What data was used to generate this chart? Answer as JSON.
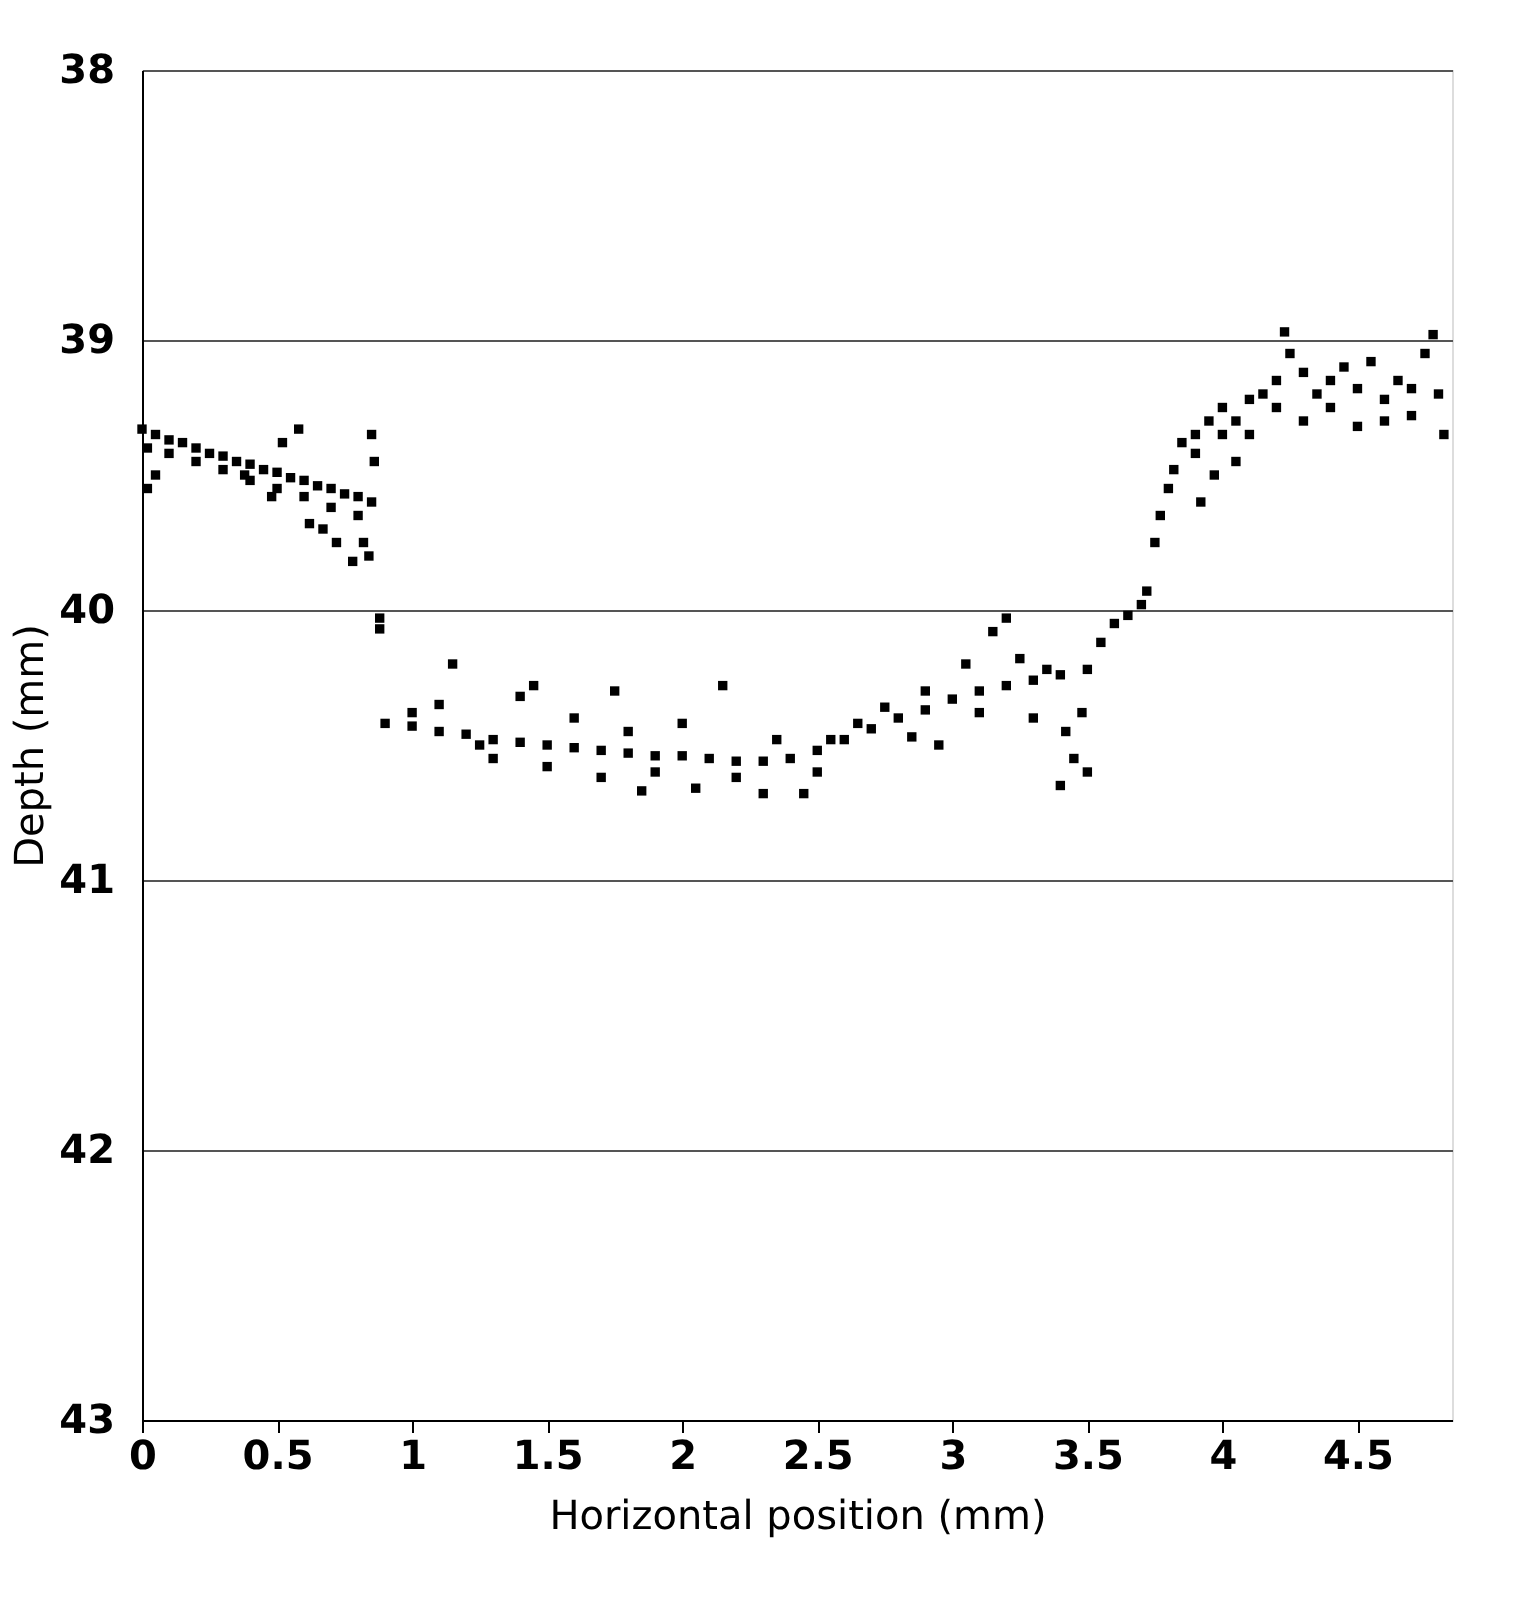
{
  "chart_data": {
    "type": "scatter",
    "xlabel": "Horizontal position (mm)",
    "ylabel": "Depth (mm)",
    "xlim": [
      0,
      4.85
    ],
    "xticks": [
      0,
      0.5,
      1,
      1.5,
      2,
      2.5,
      3,
      3.5,
      4,
      4.5
    ],
    "ylim": [
      43,
      38
    ],
    "yticks": [
      38,
      39,
      40,
      41,
      42,
      43
    ],
    "grid": "y",
    "marker": "square",
    "series": [
      {
        "color": "#000000",
        "x": [
          0,
          0.05,
          0.1,
          0.15,
          0.2,
          0.25,
          0.3,
          0.35,
          0.4,
          0.45,
          0.5,
          0.55,
          0.6,
          0.65,
          0.7,
          0.75,
          0.8,
          0.85,
          0.02,
          0.1,
          0.2,
          0.3,
          0.4,
          0.5,
          0.6,
          0.7,
          0.8,
          0.02,
          0.05,
          0.38,
          0.48,
          0.52,
          0.58,
          0.62,
          0.67,
          0.72,
          0.78,
          0.82,
          0.85,
          0.86,
          0.84,
          0.88,
          0.88,
          0.9,
          1.0,
          1.1,
          1.2,
          1.3,
          1.4,
          1.5,
          1.6,
          1.7,
          1.8,
          1.9,
          2.0,
          2.1,
          2.2,
          2.3,
          2.4,
          2.5,
          2.6,
          2.7,
          2.8,
          2.9,
          3.0,
          3.1,
          3.2,
          3.3,
          3.4,
          3.5,
          1.0,
          1.1,
          1.15,
          1.25,
          1.3,
          1.4,
          1.45,
          1.5,
          1.6,
          1.7,
          1.75,
          1.8,
          1.85,
          1.9,
          2.0,
          2.05,
          2.15,
          2.2,
          2.3,
          2.35,
          2.45,
          2.5,
          2.55,
          2.65,
          2.75,
          2.85,
          2.9,
          2.95,
          3.05,
          3.1,
          3.15,
          3.2,
          3.25,
          3.3,
          3.35,
          3.4,
          3.42,
          3.45,
          3.48,
          3.5,
          3.55,
          3.6,
          3.65,
          3.7,
          3.72,
          3.75,
          3.77,
          3.8,
          3.82,
          3.85,
          3.9,
          3.95,
          4.0,
          4.05,
          4.1,
          4.15,
          4.2,
          4.25,
          4.3,
          4.35,
          4.4,
          4.45,
          4.5,
          4.55,
          4.6,
          4.65,
          4.7,
          4.75,
          4.8,
          4.82,
          3.9,
          4.0,
          4.05,
          4.1,
          4.2,
          4.3,
          4.4,
          4.5,
          4.6,
          4.7,
          4.78,
          4.23,
          3.92,
          3.97
        ],
        "values": [
          39.33,
          39.35,
          39.37,
          39.38,
          39.4,
          39.42,
          39.43,
          39.45,
          39.46,
          39.48,
          39.49,
          39.51,
          39.52,
          39.54,
          39.55,
          39.57,
          39.58,
          39.6,
          39.4,
          39.42,
          39.45,
          39.48,
          39.52,
          39.55,
          39.58,
          39.62,
          39.65,
          39.55,
          39.5,
          39.5,
          39.58,
          39.38,
          39.33,
          39.68,
          39.7,
          39.75,
          39.82,
          39.75,
          39.35,
          39.45,
          39.8,
          40.03,
          40.07,
          40.42,
          40.43,
          40.45,
          40.46,
          40.48,
          40.49,
          40.5,
          40.51,
          40.52,
          40.53,
          40.54,
          40.54,
          40.55,
          40.56,
          40.56,
          40.55,
          40.52,
          40.48,
          40.44,
          40.4,
          40.37,
          40.33,
          40.3,
          40.28,
          40.26,
          40.24,
          40.22,
          40.38,
          40.35,
          40.2,
          40.5,
          40.55,
          40.32,
          40.28,
          40.58,
          40.4,
          40.62,
          40.3,
          40.45,
          40.67,
          40.6,
          40.42,
          40.66,
          40.28,
          40.62,
          40.68,
          40.48,
          40.68,
          40.6,
          40.48,
          40.42,
          40.36,
          40.47,
          40.3,
          40.5,
          40.2,
          40.38,
          40.08,
          40.03,
          40.18,
          40.4,
          40.22,
          40.65,
          40.45,
          40.55,
          40.38,
          40.6,
          40.12,
          40.05,
          40.02,
          39.98,
          39.93,
          39.75,
          39.65,
          39.55,
          39.48,
          39.38,
          39.35,
          39.3,
          39.25,
          39.3,
          39.35,
          39.2,
          39.15,
          39.05,
          39.12,
          39.2,
          39.15,
          39.1,
          39.18,
          39.08,
          39.22,
          39.15,
          39.28,
          39.05,
          39.2,
          39.35,
          39.42,
          39.35,
          39.45,
          39.22,
          39.25,
          39.3,
          39.25,
          39.32,
          39.3,
          39.18,
          38.98,
          38.97,
          39.6,
          39.5
        ]
      }
    ]
  }
}
